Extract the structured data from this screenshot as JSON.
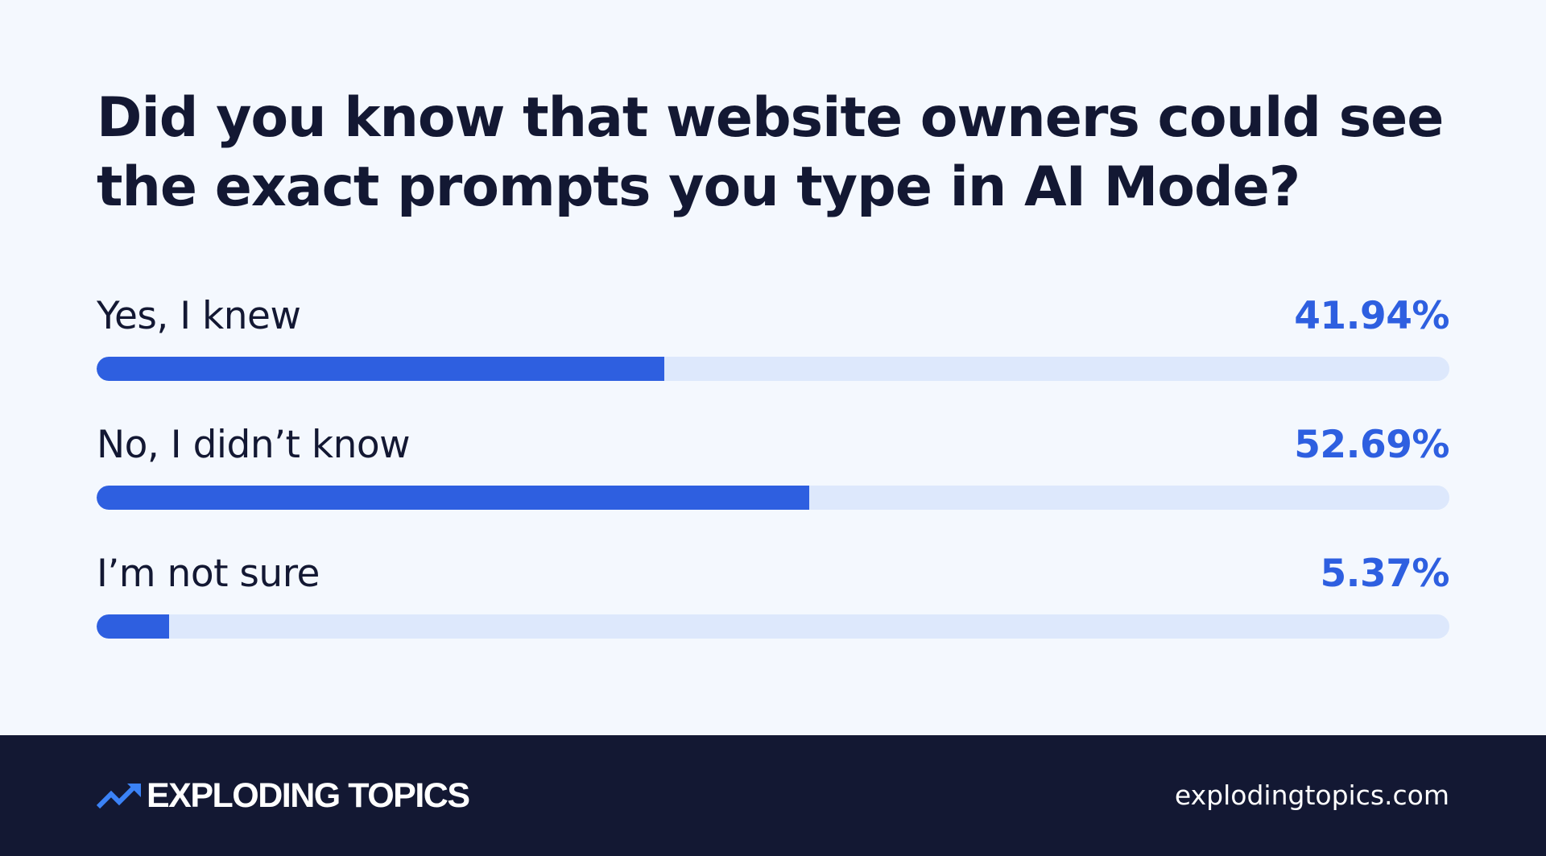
{
  "title": {
    "line1": "Did you know that website owners could see",
    "line2": "the exact prompts you type in AI Mode?"
  },
  "chart_data": {
    "type": "bar",
    "orientation": "horizontal",
    "title": "Did you know that website owners could see the exact prompts you type in AI Mode?",
    "categories": [
      "Yes, I knew",
      "No, I didn’t know",
      "I’m not sure"
    ],
    "values": [
      41.94,
      52.69,
      5.37
    ],
    "value_labels": [
      "41.94%",
      "52.69%",
      "5.37%"
    ],
    "unit": "%",
    "xlim": [
      0,
      100
    ],
    "grid": false,
    "legend": "none",
    "bar_color": "#2e5fe0",
    "track_color": "#dde8fc",
    "label_color": "#131833"
  },
  "footer": {
    "brand_name": "EXPLODING TOPICS",
    "brand_icon": "trend-arrow-icon",
    "url": "explodingtopics.com",
    "background": "#131833",
    "icon_color": "#3b82f6"
  },
  "colors": {
    "background": "#f4f8fe",
    "accent": "#2e5fe0",
    "text": "#131833"
  }
}
